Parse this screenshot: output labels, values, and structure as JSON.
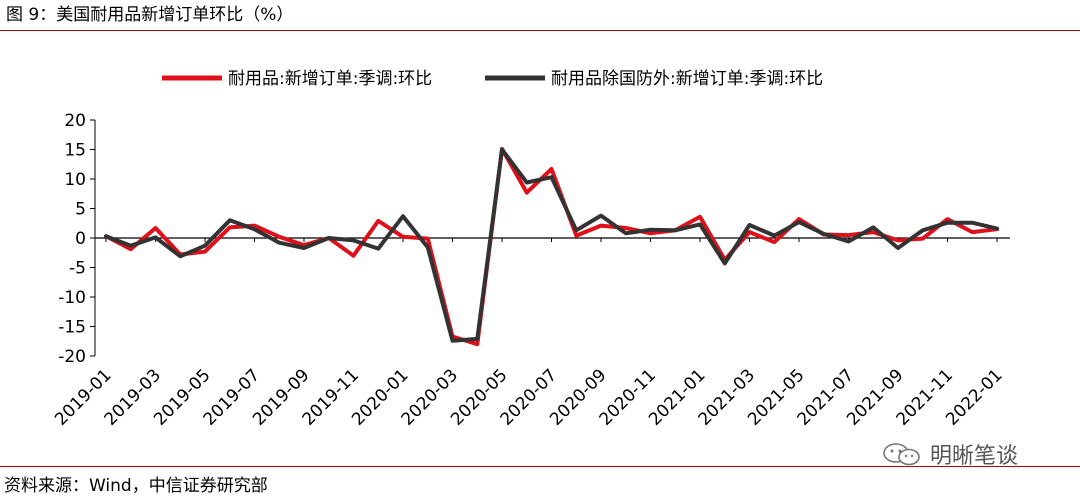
{
  "figure_title": "图 9：美国耐用品新增订单环比（%）",
  "source": "资料来源：Wind，中信证券研究部",
  "watermark": {
    "text": "明晰笔谈",
    "icon": "wechat-logo-icon"
  },
  "colors": {
    "series_red": "#e0101a",
    "series_dark": "#333333",
    "rule": "#c00000",
    "axis": "#000000"
  },
  "chart_data": {
    "type": "line",
    "title": "",
    "xlabel": "",
    "ylabel": "",
    "ylim": [
      -20,
      20
    ],
    "yticks": [
      20,
      15,
      10,
      5,
      0,
      -5,
      -10,
      -15,
      -20
    ],
    "grid": false,
    "legend_position": "top-center",
    "x": [
      "2019-01",
      "2019-02",
      "2019-03",
      "2019-04",
      "2019-05",
      "2019-06",
      "2019-07",
      "2019-08",
      "2019-09",
      "2019-10",
      "2019-11",
      "2019-12",
      "2020-01",
      "2020-02",
      "2020-03",
      "2020-04",
      "2020-05",
      "2020-06",
      "2020-07",
      "2020-08",
      "2020-09",
      "2020-10",
      "2020-11",
      "2020-12",
      "2021-01",
      "2021-02",
      "2021-03",
      "2021-04",
      "2021-05",
      "2021-06",
      "2021-07",
      "2021-08",
      "2021-09",
      "2021-10",
      "2021-11",
      "2021-12",
      "2022-01"
    ],
    "xtick_labels": [
      "2019-01",
      "2019-03",
      "2019-05",
      "2019-07",
      "2019-09",
      "2019-11",
      "2020-01",
      "2020-03",
      "2020-05",
      "2020-07",
      "2020-09",
      "2020-11",
      "2021-01",
      "2021-03",
      "2021-05",
      "2021-07",
      "2021-09",
      "2021-11",
      "2022-01"
    ],
    "series": [
      {
        "name": "耐用品:新增订单:季调:环比",
        "color": "#e0101a",
        "values": [
          0.3,
          -1.9,
          1.7,
          -2.8,
          -2.3,
          1.8,
          2.1,
          0.2,
          -1.2,
          0.0,
          -3.0,
          2.9,
          0.2,
          -0.1,
          -16.7,
          -18.0,
          15.1,
          7.7,
          11.7,
          0.4,
          2.1,
          1.7,
          0.8,
          1.3,
          3.6,
          -3.7,
          1.0,
          -0.7,
          3.2,
          0.6,
          0.5,
          1.0,
          -0.4,
          -0.1,
          3.2,
          1.0,
          1.5
        ]
      },
      {
        "name": "耐用品除国防外:新增订单:季调:环比",
        "color": "#333333",
        "values": [
          0.3,
          -1.3,
          0.1,
          -3.1,
          -1.3,
          3.0,
          1.5,
          -0.8,
          -1.7,
          0.0,
          -0.4,
          -1.8,
          3.7,
          -1.6,
          -17.4,
          -17.1,
          15.0,
          9.4,
          10.3,
          1.3,
          3.8,
          0.8,
          1.4,
          1.3,
          2.3,
          -4.3,
          2.2,
          0.4,
          2.7,
          0.7,
          -0.6,
          1.8,
          -1.7,
          1.3,
          2.6,
          2.6,
          1.6
        ]
      }
    ]
  }
}
